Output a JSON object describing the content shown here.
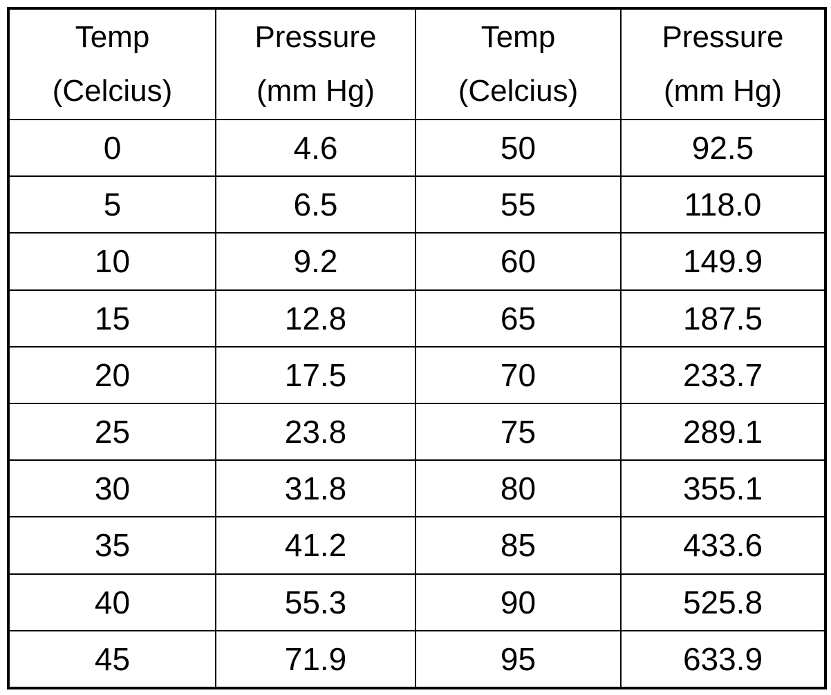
{
  "table": {
    "headers": [
      {
        "line1": "Temp",
        "line2": "(Celcius)"
      },
      {
        "line1": "Pressure",
        "line2": "(mm Hg)"
      },
      {
        "line1": "Temp",
        "line2": "(Celcius)"
      },
      {
        "line1": "Pressure",
        "line2": "(mm Hg)"
      }
    ],
    "rows": [
      [
        "0",
        "4.6",
        "50",
        "92.5"
      ],
      [
        "5",
        "6.5",
        "55",
        "118.0"
      ],
      [
        "10",
        "9.2",
        "60",
        "149.9"
      ],
      [
        "15",
        "12.8",
        "65",
        "187.5"
      ],
      [
        "20",
        "17.5",
        "70",
        "233.7"
      ],
      [
        "25",
        "23.8",
        "75",
        "289.1"
      ],
      [
        "30",
        "31.8",
        "80",
        "355.1"
      ],
      [
        "35",
        "41.2",
        "85",
        "433.6"
      ],
      [
        "40",
        "55.3",
        "90",
        "525.8"
      ],
      [
        "45",
        "71.9",
        "95",
        "633.9"
      ]
    ]
  }
}
